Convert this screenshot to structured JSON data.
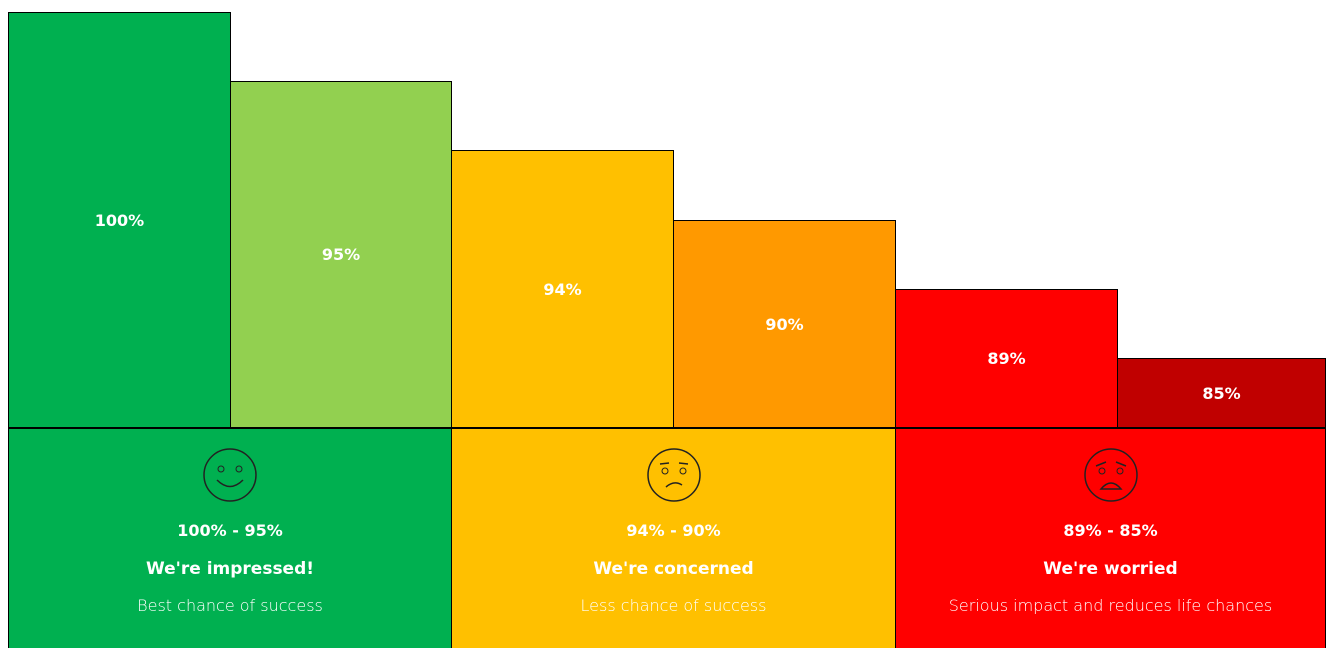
{
  "bars": [
    {
      "label": "100%"
    },
    {
      "label": "95%"
    },
    {
      "label": "94%"
    },
    {
      "label": "90%"
    },
    {
      "label": "89%"
    },
    {
      "label": "85%"
    }
  ],
  "bands": [
    {
      "range": "100% - 95%",
      "title": "We're impressed!",
      "description": "Best chance of success"
    },
    {
      "range": "94% - 90%",
      "title": "We're concerned",
      "description": "Less chance of success"
    },
    {
      "range": "89% - 85%",
      "title": "We're worried",
      "description": "Serious impact and reduces life chances"
    }
  ]
}
